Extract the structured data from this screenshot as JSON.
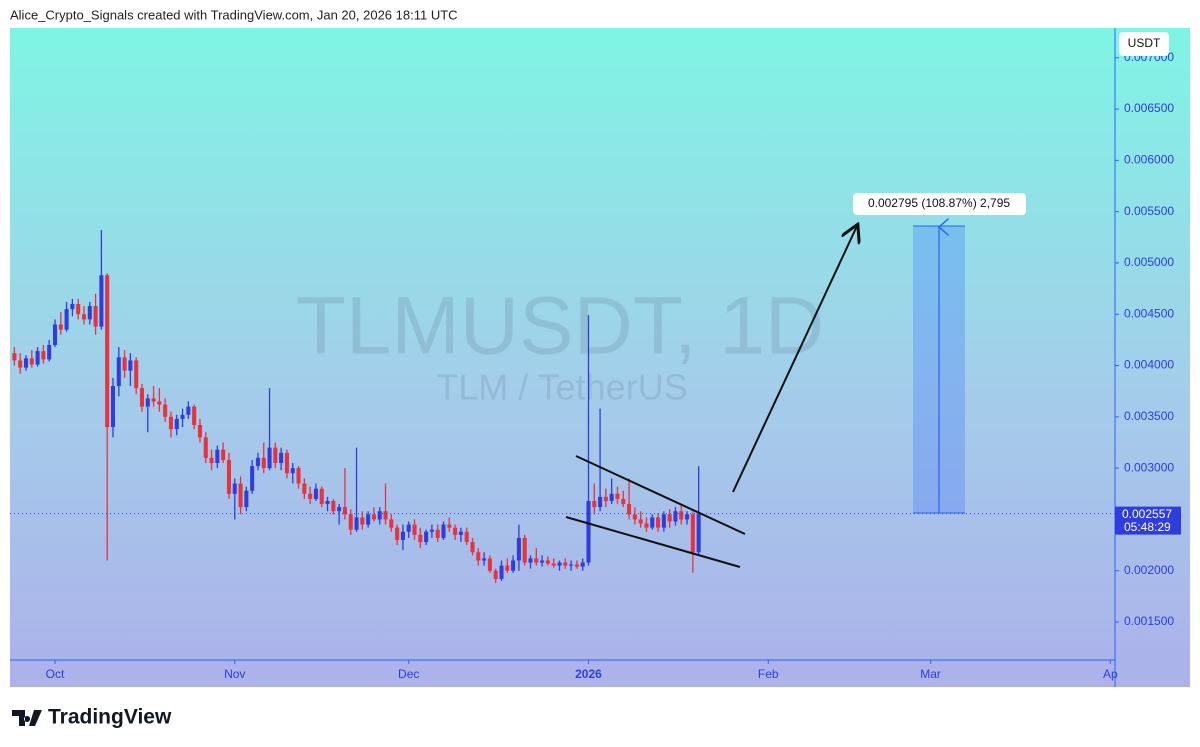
{
  "header": {
    "credit": "Alice_Crypto_Signals created with TradingView.com, Jan 20, 2026 18:11 UTC"
  },
  "footer": {
    "brand": "TradingView"
  },
  "chart_data": {
    "type": "candlestick",
    "watermark": "TLMUSDT, 1D",
    "watermark_subtitle": "TLM / TetherUS",
    "currency": "USDT",
    "last_price": 0.002557,
    "countdown": "05:48:29",
    "measure_label": "0.002795 (108.87%) 2,795",
    "up_color": "#2e3ddb",
    "down_color": "#e8323c",
    "xlim": [
      -7.76,
      182.8
    ],
    "xticks": [
      {
        "value": 0,
        "label": "Oct"
      },
      {
        "value": 31,
        "label": "Nov"
      },
      {
        "value": 61,
        "label": "Dec"
      },
      {
        "value": 92,
        "label": "2026"
      },
      {
        "value": 123,
        "label": "Feb"
      },
      {
        "value": 151,
        "label": "Mar"
      },
      {
        "value": 182,
        "label": "Ap"
      }
    ],
    "ylim": [
      0.00113,
      0.00729
    ],
    "yticks": [
      {
        "value": 0.0015,
        "label": "0.001500"
      },
      {
        "value": 0.002,
        "label": "0.002000"
      },
      {
        "value": 0.0025,
        "label": "0.002500"
      },
      {
        "value": 0.003,
        "label": "0.003000"
      },
      {
        "value": 0.0035,
        "label": "0.003500"
      },
      {
        "value": 0.004,
        "label": "0.004000"
      },
      {
        "value": 0.0045,
        "label": "0.004500"
      },
      {
        "value": 0.005,
        "label": "0.005000"
      },
      {
        "value": 0.0055,
        "label": "0.005500"
      },
      {
        "value": 0.006,
        "label": "0.006000"
      },
      {
        "value": 0.0065,
        "label": "0.006500"
      },
      {
        "value": 0.007,
        "label": "0.007000"
      }
    ],
    "x": [
      -7,
      -6,
      -5,
      -4,
      -3,
      -2,
      -1,
      0,
      1,
      2,
      3,
      4,
      5,
      6,
      7,
      8,
      9,
      10,
      11,
      12,
      13,
      14,
      15,
      16,
      17,
      18,
      19,
      20,
      21,
      22,
      23,
      24,
      25,
      26,
      27,
      28,
      29,
      30,
      31,
      32,
      33,
      34,
      35,
      36,
      37,
      38,
      39,
      40,
      41,
      42,
      43,
      44,
      45,
      46,
      47,
      48,
      49,
      50,
      51,
      52,
      53,
      54,
      55,
      56,
      57,
      58,
      59,
      60,
      61,
      62,
      63,
      64,
      65,
      66,
      67,
      68,
      69,
      70,
      71,
      72,
      73,
      74,
      75,
      76,
      77,
      78,
      79,
      80,
      81,
      82,
      83,
      84,
      85,
      86,
      87,
      88,
      89,
      90,
      91,
      92,
      93,
      94,
      95,
      96,
      97,
      98,
      99,
      100,
      101,
      102,
      103,
      104,
      105,
      106,
      107,
      108,
      109,
      110,
      111
    ],
    "ohlc": [
      [
        0.00412,
        0.00418,
        0.004,
        0.00405
      ],
      [
        0.00405,
        0.00412,
        0.00392,
        0.00398
      ],
      [
        0.00398,
        0.0041,
        0.00395,
        0.00407
      ],
      [
        0.00407,
        0.00415,
        0.00398,
        0.00401
      ],
      [
        0.00401,
        0.00418,
        0.00399,
        0.00414
      ],
      [
        0.00414,
        0.0042,
        0.00402,
        0.00406
      ],
      [
        0.00406,
        0.00425,
        0.00404,
        0.0042
      ],
      [
        0.0042,
        0.00445,
        0.00418,
        0.0044
      ],
      [
        0.0044,
        0.00452,
        0.0043,
        0.00435
      ],
      [
        0.00435,
        0.00462,
        0.00433,
        0.00455
      ],
      [
        0.00455,
        0.00465,
        0.00448,
        0.0046
      ],
      [
        0.0046,
        0.00465,
        0.00445,
        0.0045
      ],
      [
        0.0045,
        0.00458,
        0.0044,
        0.00445
      ],
      [
        0.00445,
        0.00462,
        0.0044,
        0.00458
      ],
      [
        0.00458,
        0.0047,
        0.0043,
        0.00438
      ],
      [
        0.00438,
        0.00532,
        0.00435,
        0.00488
      ],
      [
        0.00488,
        0.0049,
        0.0021,
        0.0034
      ],
      [
        0.0034,
        0.00388,
        0.0033,
        0.0038
      ],
      [
        0.0038,
        0.00418,
        0.0037,
        0.00408
      ],
      [
        0.00408,
        0.00415,
        0.00388,
        0.00395
      ],
      [
        0.00395,
        0.00412,
        0.0038,
        0.00405
      ],
      [
        0.00405,
        0.00408,
        0.00372,
        0.00378
      ],
      [
        0.00378,
        0.00382,
        0.00355,
        0.0036
      ],
      [
        0.0036,
        0.00372,
        0.00335,
        0.00368
      ],
      [
        0.00368,
        0.0038,
        0.0036,
        0.00365
      ],
      [
        0.00365,
        0.00378,
        0.00355,
        0.00362
      ],
      [
        0.00362,
        0.00368,
        0.00345,
        0.0035
      ],
      [
        0.0035,
        0.00355,
        0.0033,
        0.00338
      ],
      [
        0.00338,
        0.00352,
        0.00332,
        0.00348
      ],
      [
        0.00348,
        0.00358,
        0.0034,
        0.00352
      ],
      [
        0.00352,
        0.00365,
        0.00348,
        0.0036
      ],
      [
        0.0036,
        0.00362,
        0.00338,
        0.00342
      ],
      [
        0.00342,
        0.00348,
        0.00325,
        0.0033
      ],
      [
        0.0033,
        0.00335,
        0.00305,
        0.0031
      ],
      [
        0.0031,
        0.00318,
        0.00298,
        0.00305
      ],
      [
        0.00305,
        0.00322,
        0.003,
        0.00318
      ],
      [
        0.00318,
        0.00325,
        0.00305,
        0.00308
      ],
      [
        0.00308,
        0.00315,
        0.0027,
        0.00275
      ],
      [
        0.00275,
        0.0029,
        0.0025,
        0.00285
      ],
      [
        0.00285,
        0.00292,
        0.00255,
        0.00262
      ],
      [
        0.00262,
        0.00282,
        0.00258,
        0.00278
      ],
      [
        0.00278,
        0.00308,
        0.00275,
        0.00302
      ],
      [
        0.00302,
        0.00315,
        0.00298,
        0.0031
      ],
      [
        0.0031,
        0.00325,
        0.00295,
        0.003
      ],
      [
        0.003,
        0.00378,
        0.00298,
        0.0032
      ],
      [
        0.0032,
        0.00325,
        0.003,
        0.00305
      ],
      [
        0.00305,
        0.0032,
        0.00298,
        0.00315
      ],
      [
        0.00315,
        0.00318,
        0.0029,
        0.00295
      ],
      [
        0.00295,
        0.00305,
        0.00285,
        0.003
      ],
      [
        0.003,
        0.00302,
        0.0028,
        0.00285
      ],
      [
        0.00285,
        0.0029,
        0.0027,
        0.00275
      ],
      [
        0.00275,
        0.00282,
        0.00265,
        0.0027
      ],
      [
        0.0027,
        0.00285,
        0.00268,
        0.0028
      ],
      [
        0.0028,
        0.00282,
        0.00262,
        0.00265
      ],
      [
        0.00265,
        0.00272,
        0.00258,
        0.00268
      ],
      [
        0.00268,
        0.0027,
        0.00255,
        0.00258
      ],
      [
        0.00258,
        0.00265,
        0.00245,
        0.00262
      ],
      [
        0.00262,
        0.003,
        0.0025,
        0.00255
      ],
      [
        0.00255,
        0.0026,
        0.00235,
        0.0024
      ],
      [
        0.0024,
        0.0032,
        0.00238,
        0.00252
      ],
      [
        0.00252,
        0.00258,
        0.0024,
        0.00245
      ],
      [
        0.00245,
        0.00258,
        0.00242,
        0.00255
      ],
      [
        0.00255,
        0.00262,
        0.00248,
        0.0025
      ],
      [
        0.0025,
        0.00262,
        0.00245,
        0.00258
      ],
      [
        0.00258,
        0.00285,
        0.00245,
        0.0025
      ],
      [
        0.0025,
        0.00255,
        0.00238,
        0.00242
      ],
      [
        0.00242,
        0.00245,
        0.00225,
        0.0023
      ],
      [
        0.0023,
        0.00245,
        0.0022,
        0.00238
      ],
      [
        0.00238,
        0.00248,
        0.00232,
        0.00245
      ],
      [
        0.00245,
        0.0025,
        0.0023,
        0.00235
      ],
      [
        0.00235,
        0.00242,
        0.00222,
        0.00228
      ],
      [
        0.00228,
        0.0024,
        0.00225,
        0.00238
      ],
      [
        0.00238,
        0.00245,
        0.00232,
        0.0024
      ],
      [
        0.0024,
        0.00245,
        0.00228,
        0.00232
      ],
      [
        0.00232,
        0.00248,
        0.0023,
        0.00245
      ],
      [
        0.00245,
        0.00252,
        0.00238,
        0.00242
      ],
      [
        0.00242,
        0.00245,
        0.0023,
        0.00235
      ],
      [
        0.00235,
        0.00242,
        0.00228,
        0.00238
      ],
      [
        0.00238,
        0.00242,
        0.00225,
        0.00228
      ],
      [
        0.00228,
        0.00232,
        0.00215,
        0.00218
      ],
      [
        0.00218,
        0.00222,
        0.00205,
        0.0021
      ],
      [
        0.0021,
        0.00218,
        0.00205,
        0.00212
      ],
      [
        0.00212,
        0.00215,
        0.00198,
        0.002
      ],
      [
        0.002,
        0.00202,
        0.00188,
        0.00192
      ],
      [
        0.00192,
        0.0021,
        0.0019,
        0.00205
      ],
      [
        0.00205,
        0.00212,
        0.00198,
        0.002
      ],
      [
        0.002,
        0.00215,
        0.00198,
        0.0021
      ],
      [
        0.0021,
        0.00245,
        0.002,
        0.00232
      ],
      [
        0.00232,
        0.00235,
        0.00205,
        0.00208
      ],
      [
        0.00208,
        0.00215,
        0.00202,
        0.00212
      ],
      [
        0.00212,
        0.00222,
        0.00205,
        0.00208
      ],
      [
        0.00208,
        0.00215,
        0.00204,
        0.0021
      ],
      [
        0.0021,
        0.00214,
        0.00205,
        0.00207
      ],
      [
        0.00207,
        0.00212,
        0.00203,
        0.00205
      ],
      [
        0.00205,
        0.0021,
        0.002,
        0.00208
      ],
      [
        0.00208,
        0.00212,
        0.00202,
        0.00205
      ],
      [
        0.00205,
        0.0021,
        0.002,
        0.00206
      ],
      [
        0.00206,
        0.0021,
        0.00202,
        0.00204
      ],
      [
        0.00204,
        0.00212,
        0.002,
        0.00208
      ],
      [
        0.00208,
        0.00449,
        0.00205,
        0.00268
      ],
      [
        0.00268,
        0.00285,
        0.00255,
        0.00262
      ],
      [
        0.00262,
        0.00358,
        0.00258,
        0.00272
      ],
      [
        0.00272,
        0.0028,
        0.00262,
        0.00268
      ],
      [
        0.00268,
        0.0029,
        0.00265,
        0.00275
      ],
      [
        0.00275,
        0.00282,
        0.00265,
        0.0027
      ],
      [
        0.0027,
        0.00278,
        0.00262,
        0.00265
      ],
      [
        0.00265,
        0.0029,
        0.0025,
        0.00255
      ],
      [
        0.00255,
        0.00262,
        0.00245,
        0.0025
      ],
      [
        0.0025,
        0.00258,
        0.00242,
        0.00246
      ],
      [
        0.00246,
        0.00252,
        0.00238,
        0.00242
      ],
      [
        0.00242,
        0.00255,
        0.0024,
        0.00252
      ],
      [
        0.00252,
        0.00256,
        0.00238,
        0.00242
      ],
      [
        0.00242,
        0.00258,
        0.00238,
        0.00255
      ],
      [
        0.00255,
        0.0026,
        0.00242,
        0.00248
      ],
      [
        0.00248,
        0.00262,
        0.00244,
        0.00258
      ],
      [
        0.00258,
        0.00265,
        0.00245,
        0.0025
      ],
      [
        0.0025,
        0.00258,
        0.00245,
        0.00255
      ],
      [
        0.00255,
        0.00258,
        0.00198,
        0.00218
      ],
      [
        0.00218,
        0.00302,
        0.00215,
        0.002557
      ]
    ]
  }
}
